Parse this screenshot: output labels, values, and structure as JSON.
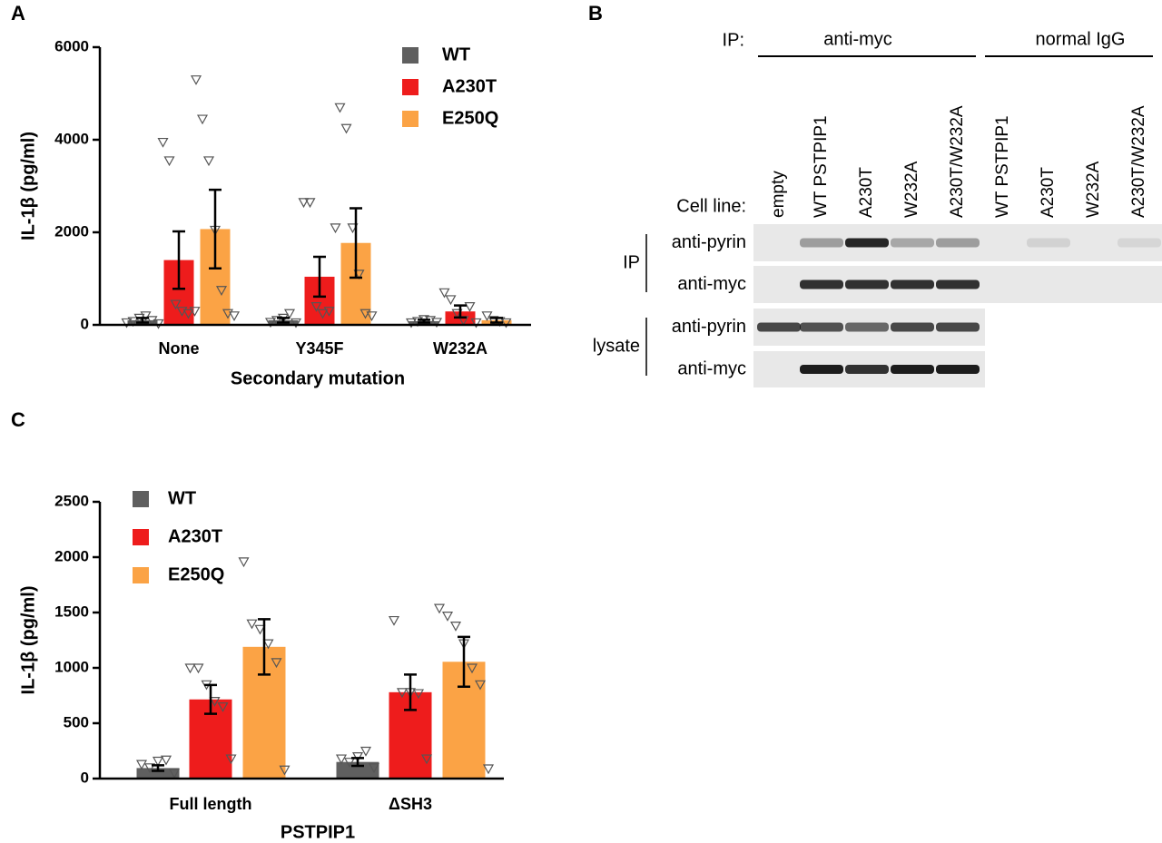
{
  "chart_data": [
    {
      "type": "bar",
      "panel": "A",
      "ylabel": "IL-1β (pg/ml)",
      "xlabel": "Secondary mutation",
      "categories": [
        "None",
        "Y345F",
        "W232A"
      ],
      "ylim": [
        0,
        6000
      ],
      "yticks": [
        0,
        2000,
        4000,
        6000
      ],
      "series": [
        {
          "name": "WT",
          "color": "#5f5f5f",
          "values": [
            100,
            100,
            80
          ],
          "errors": [
            50,
            50,
            30
          ],
          "points": [
            [
              50,
              80,
              150,
              200,
              100,
              30
            ],
            [
              60,
              100,
              150,
              250,
              50
            ],
            [
              50,
              80,
              120,
              100,
              60
            ]
          ]
        },
        {
          "name": "A230T",
          "color": "#ee1c1c",
          "values": [
            1400,
            1040,
            290
          ],
          "errors": [
            620,
            430,
            130
          ],
          "points": [
            [
              3950,
              3550,
              450,
              300,
              250,
              300
            ],
            [
              2650,
              2650,
              400,
              250,
              300,
              2100
            ],
            [
              700,
              550,
              250,
              100,
              400,
              50
            ]
          ]
        },
        {
          "name": "E250Q",
          "color": "#fba345",
          "values": [
            2070,
            1770,
            100
          ],
          "errors": [
            850,
            750,
            50
          ],
          "points": [
            [
              5300,
              4450,
              3550,
              2050,
              750,
              250,
              200
            ],
            [
              4700,
              4250,
              2100,
              1100,
              250,
              200
            ],
            [
              200,
              100,
              80,
              50
            ]
          ]
        }
      ]
    },
    {
      "type": "bar",
      "panel": "C",
      "ylabel": "IL-1β (pg/ml)",
      "xlabel": "PSTPIP1",
      "categories": [
        "Full length",
        "ΔSH3"
      ],
      "ylim": [
        0,
        2500
      ],
      "yticks": [
        0,
        500,
        1000,
        1500,
        2000,
        2500
      ],
      "series": [
        {
          "name": "WT",
          "color": "#5f5f5f",
          "values": [
            95,
            150
          ],
          "errors": [
            25,
            35
          ],
          "points": [
            [
              130,
              100,
              160,
              170,
              50
            ],
            [
              180,
              150,
              200,
              250,
              100
            ]
          ]
        },
        {
          "name": "A230T",
          "color": "#ee1c1c",
          "values": [
            715,
            780
          ],
          "errors": [
            130,
            160
          ],
          "points": [
            [
              1000,
              1000,
              850,
              700,
              650,
              180
            ],
            [
              1430,
              780,
              780,
              770,
              180
            ]
          ]
        },
        {
          "name": "E250Q",
          "color": "#fba345",
          "values": [
            1190,
            1055
          ],
          "errors": [
            250,
            225
          ],
          "points": [
            [
              1960,
              1400,
              1350,
              1220,
              1050,
              80
            ],
            [
              1540,
              1470,
              1380,
              1220,
              1000,
              850,
              90
            ]
          ]
        }
      ]
    }
  ],
  "blot": {
    "panel": "B",
    "ip_label": "IP:",
    "groups": [
      "anti-myc",
      "normal IgG"
    ],
    "cell_line_label": "Cell line:",
    "lanes": [
      "empty",
      "WT PSTPIP1",
      "A230T",
      "W232A",
      "A230T/W232A",
      "WT PSTPIP1",
      "A230T",
      "W232A",
      "A230T/W232A"
    ],
    "sections": [
      {
        "name": "IP",
        "rows": [
          "anti-pyrin",
          "anti-myc"
        ]
      },
      {
        "name": "lysate",
        "rows": [
          "anti-pyrin",
          "anti-myc"
        ]
      }
    ]
  }
}
